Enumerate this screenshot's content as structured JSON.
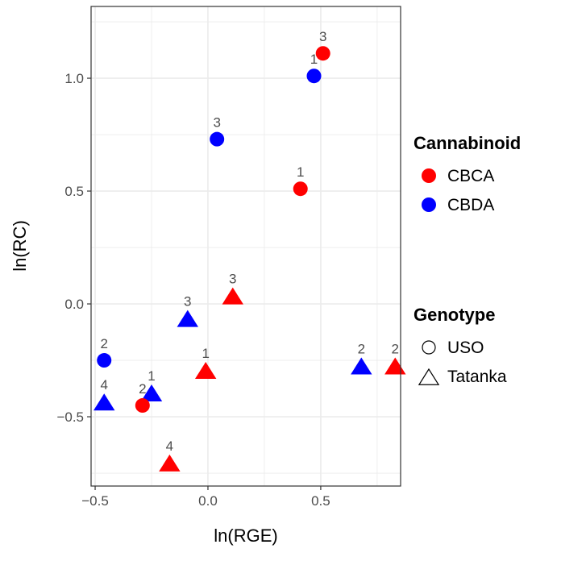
{
  "chart_data": {
    "type": "scatter",
    "xlabel": "ln(RGE)",
    "ylabel": "ln(RC)",
    "xlim": [
      -0.518,
      0.854
    ],
    "ylim": [
      -0.807,
      1.318
    ],
    "x_ticks": [
      -0.5,
      0.0,
      0.5
    ],
    "x_tick_labels": [
      "−0.5",
      "0.0",
      "0.5"
    ],
    "y_ticks": [
      -0.5,
      0.0,
      0.5,
      1.0
    ],
    "y_tick_labels": [
      "−0.5",
      "0.0",
      "0.5",
      "1.0"
    ],
    "grid": true,
    "legend_placement": "right",
    "legends": [
      {
        "title": "Cannabinoid",
        "entries": [
          {
            "label": "CBCA",
            "color": "#ff0000"
          },
          {
            "label": "CBDA",
            "color": "#0000ff"
          }
        ]
      },
      {
        "title": "Genotype",
        "entries": [
          {
            "label": "USO",
            "shape": "circle"
          },
          {
            "label": "Tatanka",
            "shape": "triangle"
          }
        ]
      }
    ],
    "points": [
      {
        "x": 0.51,
        "y": 1.11,
        "cannabinoid": "CBCA",
        "genotype": "USO",
        "label": "3"
      },
      {
        "x": 0.47,
        "y": 1.01,
        "cannabinoid": "CBDA",
        "genotype": "USO",
        "label": "1"
      },
      {
        "x": 0.04,
        "y": 0.73,
        "cannabinoid": "CBDA",
        "genotype": "USO",
        "label": "3"
      },
      {
        "x": 0.41,
        "y": 0.51,
        "cannabinoid": "CBCA",
        "genotype": "USO",
        "label": "1"
      },
      {
        "x": 0.11,
        "y": 0.03,
        "cannabinoid": "CBCA",
        "genotype": "Tatanka",
        "label": "3"
      },
      {
        "x": -0.09,
        "y": -0.07,
        "cannabinoid": "CBDA",
        "genotype": "Tatanka",
        "label": "3"
      },
      {
        "x": -0.46,
        "y": -0.25,
        "cannabinoid": "CBDA",
        "genotype": "USO",
        "label": "2"
      },
      {
        "x": -0.01,
        "y": -0.3,
        "cannabinoid": "CBCA",
        "genotype": "Tatanka",
        "label": "1"
      },
      {
        "x": 0.68,
        "y": -0.28,
        "cannabinoid": "CBDA",
        "genotype": "Tatanka",
        "label": "2"
      },
      {
        "x": 0.83,
        "y": -0.28,
        "cannabinoid": "CBCA",
        "genotype": "Tatanka",
        "label": "2"
      },
      {
        "x": -0.25,
        "y": -0.4,
        "cannabinoid": "CBDA",
        "genotype": "Tatanka",
        "label": "1"
      },
      {
        "x": -0.46,
        "y": -0.44,
        "cannabinoid": "CBDA",
        "genotype": "Tatanka",
        "label": "4"
      },
      {
        "x": -0.29,
        "y": -0.45,
        "cannabinoid": "CBCA",
        "genotype": "USO",
        "label": "2"
      },
      {
        "x": -0.17,
        "y": -0.71,
        "cannabinoid": "CBCA",
        "genotype": "Tatanka",
        "label": "4"
      }
    ]
  }
}
